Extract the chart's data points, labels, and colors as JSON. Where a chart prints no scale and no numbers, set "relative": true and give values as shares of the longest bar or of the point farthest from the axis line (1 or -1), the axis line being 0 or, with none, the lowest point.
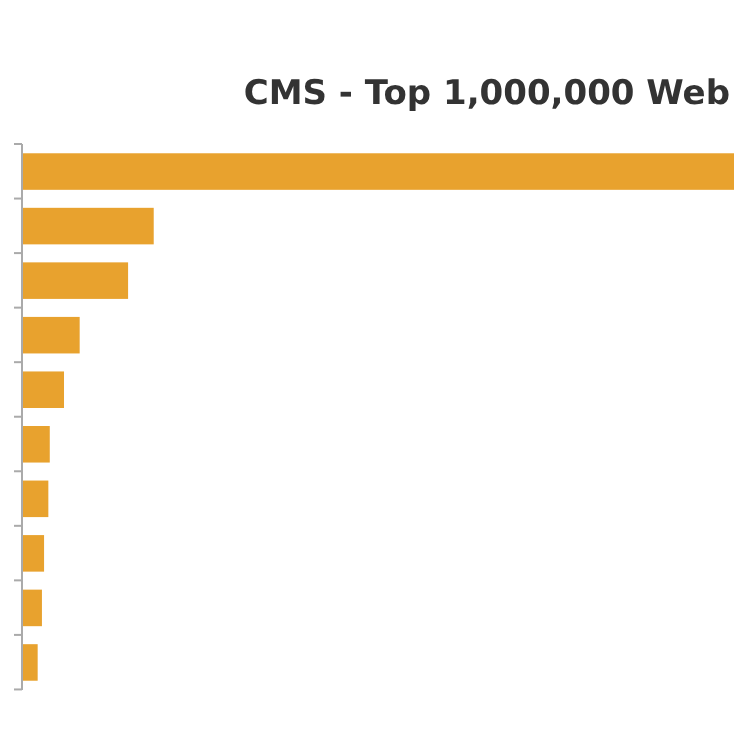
{
  "chart_data": {
    "type": "bar",
    "orientation": "horizontal",
    "relative": true,
    "title": "CMS - Top 1,000,000 Web",
    "categories": [
      null,
      null,
      null,
      null,
      null,
      null,
      null,
      null,
      null,
      null
    ],
    "values": [
      1,
      0.185,
      0.149,
      0.081,
      0.059,
      0.039,
      0.037,
      0.031,
      0.028,
      0.022
    ],
    "color": "#e8a22e"
  }
}
